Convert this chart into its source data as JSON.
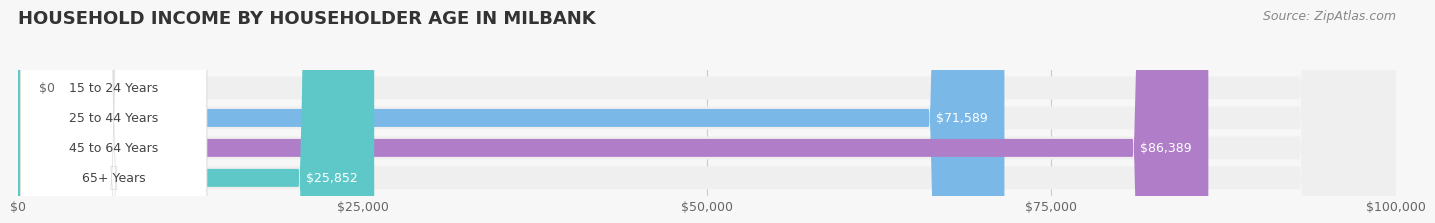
{
  "title": "HOUSEHOLD INCOME BY HOUSEHOLDER AGE IN MILBANK",
  "source": "Source: ZipAtlas.com",
  "categories": [
    "15 to 24 Years",
    "25 to 44 Years",
    "45 to 64 Years",
    "65+ Years"
  ],
  "values": [
    0,
    71589,
    86389,
    25852
  ],
  "bar_colors": [
    "#f4a0a8",
    "#7ab8e8",
    "#b07ec8",
    "#5ec8c8"
  ],
  "bar_bg_color": "#efefef",
  "background_color": "#f7f7f7",
  "xlim": [
    0,
    100000
  ],
  "xticks": [
    0,
    25000,
    50000,
    75000,
    100000
  ],
  "xtick_labels": [
    "$0",
    "$25,000",
    "$50,000",
    "$75,000",
    "$100,000"
  ],
  "value_labels": [
    "$0",
    "$71,589",
    "$86,389",
    "$25,852"
  ],
  "title_fontsize": 13,
  "tick_fontsize": 9,
  "label_fontsize": 9,
  "value_fontsize": 9,
  "source_fontsize": 9
}
